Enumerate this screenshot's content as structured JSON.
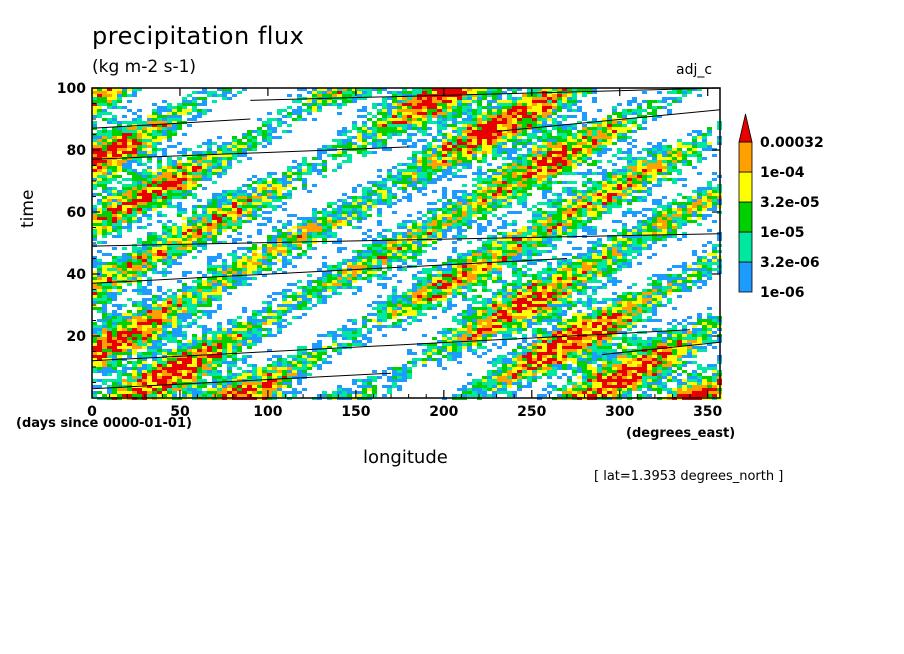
{
  "chart_data": {
    "type": "heatmap",
    "title": "precipitation flux",
    "units": "(kg m-2 s-1)",
    "run_label": "adj_c",
    "xlabel": "longitude",
    "x_units": "(degrees_east)",
    "ylabel": "time",
    "y_units": "(days since 0000-01-01)",
    "note": "[ lat=1.3953 degrees_north ]",
    "xlim": [
      0,
      357
    ],
    "ylim": [
      0,
      100
    ],
    "x_ticks": [
      0,
      50,
      100,
      150,
      200,
      250,
      300,
      350
    ],
    "y_ticks": [
      20,
      40,
      60,
      80,
      100
    ],
    "colorbar": {
      "levels": [
        "1e-06",
        "3.2e-06",
        "1e-05",
        "3.2e-05",
        "1e-04",
        "0.00032"
      ],
      "colors": [
        "#1e9bff",
        "#00e8a0",
        "#00d000",
        "#ffff00",
        "#ffa000",
        "#e80000"
      ],
      "extend": "max"
    },
    "pattern": "eastward-propagating precipitation streaks; rain rate varies in time and longitude"
  }
}
